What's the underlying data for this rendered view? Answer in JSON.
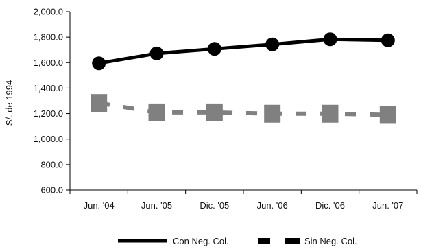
{
  "chart_data": {
    "type": "line",
    "title": "",
    "xlabel": "",
    "ylabel": "S/. de 1994",
    "categories": [
      "Jun. '04",
      "Jun. '05",
      "Dic. '05",
      "Jun. '06",
      "Dic. '06",
      "Jun. '07"
    ],
    "ylim": [
      600,
      2000
    ],
    "yticks": [
      600,
      800,
      1000,
      1200,
      1400,
      1600,
      1800,
      2000
    ],
    "ytick_labels": [
      "600.0",
      "800.0",
      "1,000.0",
      "1,200.0",
      "1,400.0",
      "1,600.0",
      "1,800.0",
      "2,000.0"
    ],
    "grid": false,
    "legend_position": "bottom-right",
    "series": [
      {
        "name": "Con Neg. Col.",
        "values": [
          1595,
          1672,
          1708,
          1743,
          1783,
          1775
        ],
        "color": "#000000",
        "style": "solid",
        "marker": "circle"
      },
      {
        "name": "Sin Neg. Col.",
        "values": [
          1283,
          1209,
          1209,
          1199,
          1199,
          1190
        ],
        "color": "#808080",
        "style": "dashed",
        "marker": "square"
      }
    ]
  }
}
